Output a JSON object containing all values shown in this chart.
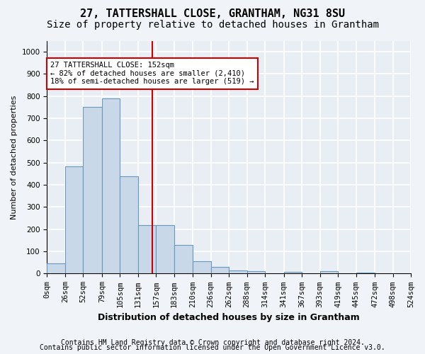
{
  "title1": "27, TATTERSHALL CLOSE, GRANTHAM, NG31 8SU",
  "title2": "Size of property relative to detached houses in Grantham",
  "xlabel": "Distribution of detached houses by size in Grantham",
  "ylabel": "Number of detached properties",
  "bar_values": [
    45,
    485,
    750,
    790,
    440,
    220,
    220,
    130,
    55,
    30,
    15,
    10,
    0,
    8,
    0,
    10,
    0,
    5,
    0,
    0
  ],
  "x_labels": [
    "0sqm",
    "26sqm",
    "52sqm",
    "79sqm",
    "105sqm",
    "131sqm",
    "157sqm",
    "183sqm",
    "210sqm",
    "236sqm",
    "262sqm",
    "288sqm",
    "314sqm",
    "341sqm",
    "367sqm",
    "393sqm",
    "419sqm",
    "445sqm",
    "472sqm",
    "498sqm",
    "524sqm"
  ],
  "bin_edges": [
    0,
    26,
    52,
    79,
    105,
    131,
    157,
    183,
    210,
    236,
    262,
    288,
    314,
    341,
    367,
    393,
    419,
    445,
    472,
    498,
    524
  ],
  "bar_color": "#c8d8e8",
  "bar_edge_color": "#6699bb",
  "background_color": "#e8eef4",
  "grid_color": "#ffffff",
  "vline_x": 152,
  "vline_color": "#cc0000",
  "annotation_line1": "27 TATTERSHALL CLOSE: 152sqm",
  "annotation_line2": "← 82% of detached houses are smaller (2,410)",
  "annotation_line3": "18% of semi-detached houses are larger (519) →",
  "annotation_box_color": "#ffffff",
  "annotation_box_edge": "#cc0000",
  "ylim": [
    0,
    1050
  ],
  "yticks": [
    0,
    100,
    200,
    300,
    400,
    500,
    600,
    700,
    800,
    900,
    1000
  ],
  "footer1": "Contains HM Land Registry data © Crown copyright and database right 2024.",
  "footer2": "Contains public sector information licensed under the Open Government Licence v3.0.",
  "title1_fontsize": 11,
  "title2_fontsize": 10,
  "axis_label_fontsize": 8,
  "tick_fontsize": 7.5,
  "footer_fontsize": 7,
  "fig_bg_color": "#f0f4f8"
}
